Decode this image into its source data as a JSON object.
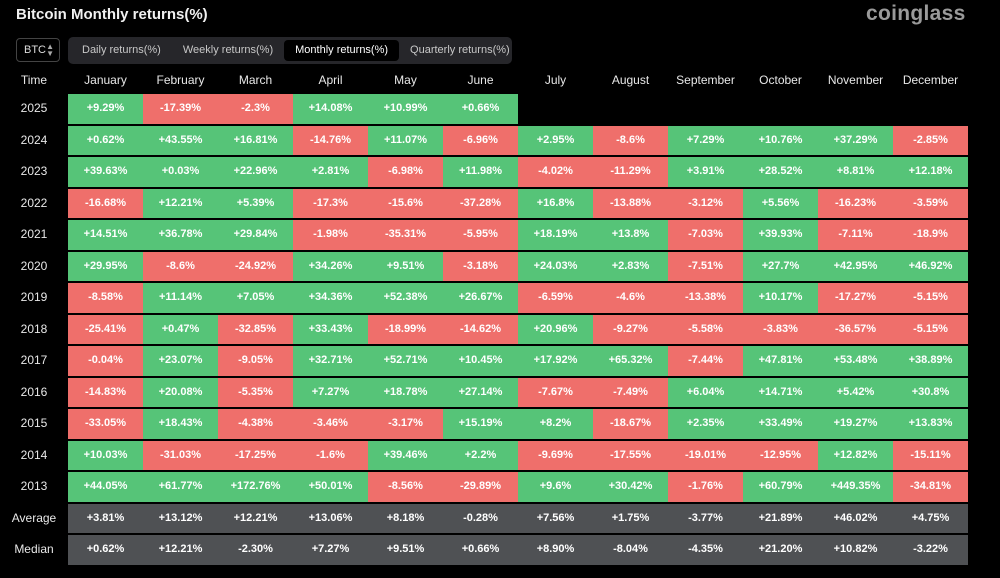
{
  "header": {
    "title": "Bitcoin Monthly returns(%)",
    "brand": "coinglass"
  },
  "coin_selector": {
    "value": "BTC"
  },
  "tabs": [
    {
      "label": "Daily returns(%)",
      "active": false
    },
    {
      "label": "Weekly returns(%)",
      "active": false
    },
    {
      "label": "Monthly returns(%)",
      "active": true
    },
    {
      "label": "Quarterly returns(%)",
      "active": false
    }
  ],
  "table": {
    "corner": "Time",
    "months": [
      "January",
      "February",
      "March",
      "April",
      "May",
      "June",
      "July",
      "August",
      "September",
      "October",
      "November",
      "December"
    ],
    "rows": [
      {
        "label": "2025",
        "values": [
          "+9.29%",
          "-17.39%",
          "-2.3%",
          "+14.08%",
          "+10.99%",
          "+0.66%",
          "",
          "",
          "",
          "",
          "",
          ""
        ]
      },
      {
        "label": "2024",
        "values": [
          "+0.62%",
          "+43.55%",
          "+16.81%",
          "-14.76%",
          "+11.07%",
          "-6.96%",
          "+2.95%",
          "-8.6%",
          "+7.29%",
          "+10.76%",
          "+37.29%",
          "-2.85%"
        ]
      },
      {
        "label": "2023",
        "values": [
          "+39.63%",
          "+0.03%",
          "+22.96%",
          "+2.81%",
          "-6.98%",
          "+11.98%",
          "-4.02%",
          "-11.29%",
          "+3.91%",
          "+28.52%",
          "+8.81%",
          "+12.18%"
        ]
      },
      {
        "label": "2022",
        "values": [
          "-16.68%",
          "+12.21%",
          "+5.39%",
          "-17.3%",
          "-15.6%",
          "-37.28%",
          "+16.8%",
          "-13.88%",
          "-3.12%",
          "+5.56%",
          "-16.23%",
          "-3.59%"
        ]
      },
      {
        "label": "2021",
        "values": [
          "+14.51%",
          "+36.78%",
          "+29.84%",
          "-1.98%",
          "-35.31%",
          "-5.95%",
          "+18.19%",
          "+13.8%",
          "-7.03%",
          "+39.93%",
          "-7.11%",
          "-18.9%"
        ]
      },
      {
        "label": "2020",
        "values": [
          "+29.95%",
          "-8.6%",
          "-24.92%",
          "+34.26%",
          "+9.51%",
          "-3.18%",
          "+24.03%",
          "+2.83%",
          "-7.51%",
          "+27.7%",
          "+42.95%",
          "+46.92%"
        ]
      },
      {
        "label": "2019",
        "values": [
          "-8.58%",
          "+11.14%",
          "+7.05%",
          "+34.36%",
          "+52.38%",
          "+26.67%",
          "-6.59%",
          "-4.6%",
          "-13.38%",
          "+10.17%",
          "-17.27%",
          "-5.15%"
        ]
      },
      {
        "label": "2018",
        "values": [
          "-25.41%",
          "+0.47%",
          "-32.85%",
          "+33.43%",
          "-18.99%",
          "-14.62%",
          "+20.96%",
          "-9.27%",
          "-5.58%",
          "-3.83%",
          "-36.57%",
          "-5.15%"
        ]
      },
      {
        "label": "2017",
        "values": [
          "-0.04%",
          "+23.07%",
          "-9.05%",
          "+32.71%",
          "+52.71%",
          "+10.45%",
          "+17.92%",
          "+65.32%",
          "-7.44%",
          "+47.81%",
          "+53.48%",
          "+38.89%"
        ]
      },
      {
        "label": "2016",
        "values": [
          "-14.83%",
          "+20.08%",
          "-5.35%",
          "+7.27%",
          "+18.78%",
          "+27.14%",
          "-7.67%",
          "-7.49%",
          "+6.04%",
          "+14.71%",
          "+5.42%",
          "+30.8%"
        ]
      },
      {
        "label": "2015",
        "values": [
          "-33.05%",
          "+18.43%",
          "-4.38%",
          "-3.46%",
          "-3.17%",
          "+15.19%",
          "+8.2%",
          "-18.67%",
          "+2.35%",
          "+33.49%",
          "+19.27%",
          "+13.83%"
        ]
      },
      {
        "label": "2014",
        "values": [
          "+10.03%",
          "-31.03%",
          "-17.25%",
          "-1.6%",
          "+39.46%",
          "+2.2%",
          "-9.69%",
          "-17.55%",
          "-19.01%",
          "-12.95%",
          "+12.82%",
          "-15.11%"
        ]
      },
      {
        "label": "2013",
        "values": [
          "+44.05%",
          "+61.77%",
          "+172.76%",
          "+50.01%",
          "-8.56%",
          "-29.89%",
          "+9.6%",
          "+30.42%",
          "-1.76%",
          "+60.79%",
          "+449.35%",
          "-34.81%"
        ]
      }
    ],
    "stats": [
      {
        "label": "Average",
        "values": [
          "+3.81%",
          "+13.12%",
          "+12.21%",
          "+13.06%",
          "+8.18%",
          "-0.28%",
          "+7.56%",
          "+1.75%",
          "-3.77%",
          "+21.89%",
          "+46.02%",
          "+4.75%"
        ]
      },
      {
        "label": "Median",
        "values": [
          "+0.62%",
          "+12.21%",
          "-2.30%",
          "+7.27%",
          "+9.51%",
          "+0.66%",
          "+8.90%",
          "-8.04%",
          "-4.35%",
          "+21.20%",
          "+10.82%",
          "-3.22%"
        ]
      }
    ]
  },
  "colors": {
    "positive": "#56c478",
    "negative": "#ef6f6b",
    "stat": "#4f5154",
    "background": "#000000"
  }
}
